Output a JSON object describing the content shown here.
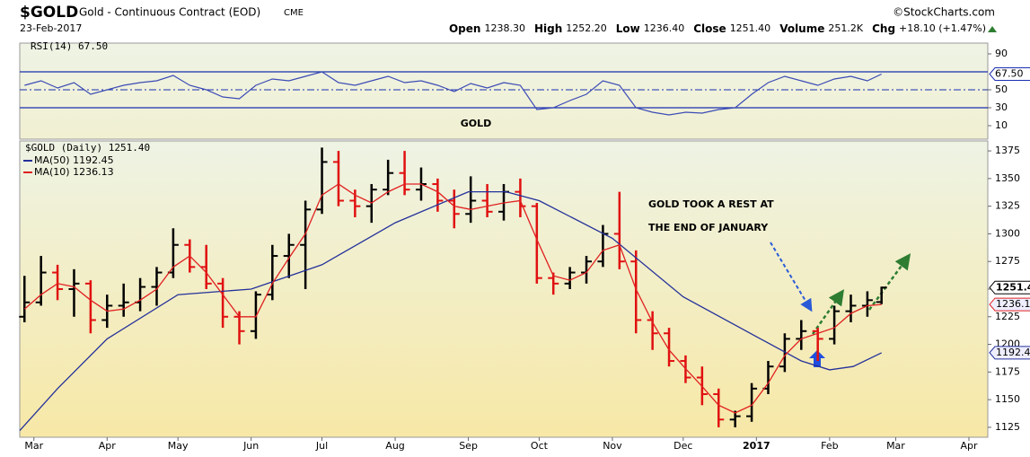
{
  "header": {
    "symbol": "$GOLD",
    "name": "Gold - Continuous Contract (EOD)",
    "exchange": "CME",
    "source": "©StockCharts.com",
    "date": "23-Feb-2017",
    "quote": [
      [
        "Open",
        "1238.30"
      ],
      [
        "High",
        "1252.20"
      ],
      [
        "Low",
        "1236.40"
      ],
      [
        "Close",
        "1251.40"
      ],
      [
        "Volume",
        "251.2K"
      ],
      [
        "Chg",
        "+18.10 (+1.47%)"
      ]
    ]
  },
  "chart_data": [
    {
      "type": "line",
      "title": "RSI(14) 67.50",
      "color": "#3b4bb5",
      "x": [
        -4,
        3,
        10,
        17,
        24,
        31,
        38,
        45,
        52,
        59,
        66,
        73,
        80,
        87,
        94,
        101,
        108,
        115,
        122,
        129,
        136,
        143,
        150,
        157,
        164,
        171,
        178,
        185,
        192,
        199,
        206,
        213,
        220,
        227,
        234,
        241,
        248,
        255,
        262,
        269,
        276,
        283,
        290,
        297,
        304,
        311,
        318,
        325,
        332,
        339,
        346,
        353,
        359
      ],
      "values": [
        55,
        60,
        52,
        58,
        45,
        50,
        55,
        58,
        60,
        66,
        55,
        50,
        42,
        40,
        55,
        62,
        60,
        65,
        70,
        58,
        55,
        60,
        65,
        58,
        60,
        55,
        48,
        57,
        52,
        58,
        55,
        28,
        30,
        38,
        45,
        60,
        55,
        30,
        25,
        22,
        25,
        24,
        28,
        30,
        45,
        58,
        65,
        60,
        55,
        62,
        65,
        60,
        67.5
      ],
      "xlim": [
        -6,
        404
      ],
      "ylim": [
        0,
        100
      ],
      "yticks": [
        90,
        50,
        30,
        10
      ],
      "hlines": [
        70,
        30
      ],
      "dashed_hlines": [
        50
      ],
      "hline_color": "#1a2fb0",
      "last_label": {
        "value": 67.5,
        "label": "67.50"
      },
      "annotation": "GOLD",
      "annotation_color": "#2e7d32"
    },
    {
      "type": "ohlc",
      "title": "$GOLD (Daily) 1251.40",
      "up_color": "#000000",
      "down_color": "#e01010",
      "x": [
        -4,
        3,
        10,
        17,
        24,
        31,
        38,
        45,
        52,
        59,
        66,
        73,
        80,
        87,
        94,
        101,
        108,
        115,
        122,
        129,
        136,
        143,
        150,
        157,
        164,
        171,
        178,
        185,
        192,
        199,
        206,
        213,
        220,
        227,
        234,
        241,
        248,
        255,
        262,
        269,
        276,
        283,
        290,
        297,
        304,
        311,
        318,
        325,
        332,
        339,
        346,
        353,
        359
      ],
      "open": [
        1225,
        1238,
        1265,
        1250,
        1255,
        1222,
        1235,
        1238,
        1252,
        1265,
        1290,
        1270,
        1255,
        1225,
        1212,
        1245,
        1280,
        1290,
        1322,
        1365,
        1330,
        1325,
        1340,
        1355,
        1340,
        1345,
        1330,
        1318,
        1330,
        1320,
        1338,
        1325,
        1260,
        1255,
        1265,
        1275,
        1300,
        1275,
        1222,
        1210,
        1185,
        1170,
        1155,
        1132,
        1135,
        1160,
        1180,
        1205,
        1212,
        1205,
        1230,
        1235,
        1238.3
      ],
      "high": [
        1262,
        1280,
        1272,
        1268,
        1258,
        1245,
        1255,
        1260,
        1270,
        1305,
        1295,
        1290,
        1260,
        1230,
        1248,
        1290,
        1300,
        1330,
        1378,
        1375,
        1340,
        1345,
        1367,
        1375,
        1360,
        1350,
        1340,
        1352,
        1345,
        1345,
        1350,
        1328,
        1265,
        1270,
        1280,
        1308,
        1338,
        1285,
        1230,
        1215,
        1190,
        1180,
        1160,
        1140,
        1165,
        1185,
        1210,
        1222,
        1215,
        1235,
        1245,
        1248,
        1252.2
      ],
      "low": [
        1220,
        1235,
        1240,
        1225,
        1210,
        1215,
        1225,
        1230,
        1235,
        1260,
        1265,
        1250,
        1215,
        1200,
        1205,
        1240,
        1260,
        1250,
        1318,
        1325,
        1315,
        1310,
        1335,
        1335,
        1330,
        1320,
        1305,
        1310,
        1315,
        1312,
        1315,
        1255,
        1245,
        1250,
        1255,
        1270,
        1268,
        1210,
        1195,
        1180,
        1165,
        1145,
        1125,
        1125,
        1130,
        1155,
        1175,
        1195,
        1185,
        1200,
        1220,
        1225,
        1236.4
      ],
      "close": [
        1238,
        1265,
        1250,
        1255,
        1222,
        1235,
        1238,
        1252,
        1265,
        1290,
        1270,
        1255,
        1225,
        1212,
        1245,
        1280,
        1290,
        1322,
        1365,
        1330,
        1325,
        1340,
        1355,
        1340,
        1345,
        1330,
        1318,
        1330,
        1320,
        1338,
        1325,
        1260,
        1255,
        1265,
        1275,
        1300,
        1275,
        1222,
        1210,
        1185,
        1170,
        1155,
        1132,
        1135,
        1160,
        1180,
        1205,
        1212,
        1205,
        1230,
        1235,
        1240,
        1251.4
      ],
      "series": [
        {
          "name": "MA(50) 1192.45",
          "color": "#24319a",
          "x": [
            -6,
            10,
            31,
            61,
            92,
            122,
            153,
            184,
            200,
            214,
            245,
            275,
            306,
            325,
            337,
            347,
            359
          ],
          "values": [
            1122,
            1160,
            1205,
            1245,
            1250,
            1272,
            1310,
            1338,
            1338,
            1330,
            1296,
            1243,
            1207,
            1185,
            1177,
            1180,
            1192.45
          ]
        },
        {
          "name": "MA(10) 1236.13",
          "color": "#e02020",
          "x": [
            -4,
            3,
            10,
            17,
            24,
            31,
            38,
            45,
            52,
            59,
            66,
            73,
            80,
            87,
            94,
            101,
            108,
            115,
            122,
            129,
            136,
            143,
            150,
            157,
            164,
            171,
            178,
            185,
            192,
            199,
            206,
            213,
            220,
            227,
            234,
            241,
            248,
            255,
            262,
            269,
            276,
            283,
            290,
            297,
            304,
            311,
            318,
            325,
            332,
            339,
            346,
            353,
            359
          ],
          "values": [
            1232,
            1245,
            1255,
            1252,
            1240,
            1230,
            1232,
            1240,
            1250,
            1270,
            1280,
            1265,
            1245,
            1225,
            1225,
            1255,
            1278,
            1300,
            1335,
            1345,
            1335,
            1328,
            1338,
            1345,
            1345,
            1338,
            1325,
            1322,
            1325,
            1328,
            1330,
            1295,
            1262,
            1258,
            1265,
            1285,
            1290,
            1250,
            1220,
            1195,
            1178,
            1162,
            1145,
            1138,
            1145,
            1165,
            1190,
            1205,
            1210,
            1215,
            1228,
            1235,
            1236.13
          ]
        }
      ],
      "xlim": [
        -6,
        404
      ],
      "ylim": [
        1116,
        1384
      ],
      "yticks": [
        1375,
        1350,
        1325,
        1300,
        1275,
        1250,
        1225,
        1200,
        1175,
        1150,
        1125
      ],
      "xticks": [
        {
          "value": 0,
          "label": "Mar"
        },
        {
          "value": 31,
          "label": "Apr"
        },
        {
          "value": 61,
          "label": "May"
        },
        {
          "value": 92,
          "label": "Jun"
        },
        {
          "value": 122,
          "label": "Jul"
        },
        {
          "value": 153,
          "label": "Aug"
        },
        {
          "value": 184,
          "label": "Sep"
        },
        {
          "value": 214,
          "label": "Oct"
        },
        {
          "value": 245,
          "label": "Nov"
        },
        {
          "value": 275,
          "label": "Dec"
        },
        {
          "value": 306,
          "label": "2017"
        },
        {
          "value": 337,
          "label": "Feb"
        },
        {
          "value": 365,
          "label": "Mar"
        },
        {
          "value": 396,
          "label": "Apr"
        }
      ],
      "last_labels": [
        {
          "value": 1251.4,
          "label": "1251.4",
          "color": "#000000"
        },
        {
          "value": 1236.13,
          "label": "1236.1",
          "color": "#e02020"
        },
        {
          "value": 1192.45,
          "label": "1192.4",
          "color": "#24319a"
        }
      ],
      "annotation": [
        "GOLD TOOK A REST AT",
        "THE END OF JANUARY"
      ],
      "annotation_color": "#2a5bd7"
    }
  ]
}
